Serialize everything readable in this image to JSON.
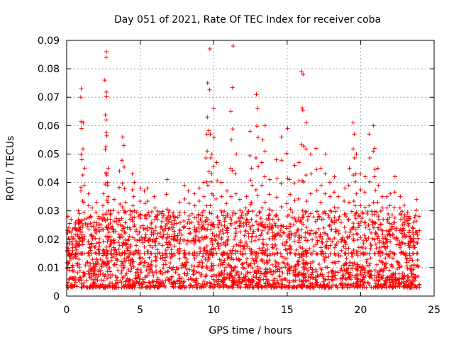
{
  "chart_data": {
    "type": "scatter",
    "title": "Day 051 of 2021, Rate Of TEC Index for receiver coba",
    "xlabel": "GPS time / hours",
    "ylabel": "ROTI / TECUs",
    "xlim": [
      0,
      25
    ],
    "ylim": [
      0,
      0.09
    ],
    "xticks": [
      0,
      5,
      10,
      15,
      20,
      25
    ],
    "xtick_labels": [
      "0",
      "5",
      "10",
      "15",
      "20",
      "25"
    ],
    "yticks": [
      0,
      0.01,
      0.02,
      0.03,
      0.04,
      0.05,
      0.06,
      0.07,
      0.08,
      0.09
    ],
    "ytick_labels": [
      "0",
      "0.01",
      "0.02",
      "0.03",
      "0.04",
      "0.05",
      "0.06",
      "0.07",
      "0.08",
      "0.09"
    ],
    "grid": true,
    "marker": "+",
    "color": "#ff0000",
    "series": [
      {
        "name": "ROTI",
        "x": [
          0.1,
          0.2,
          0.4,
          0.6,
          0.8,
          0.9,
          1.0,
          1.0,
          1.1,
          1.2,
          1.5,
          1.7,
          2.0,
          2.2,
          2.5,
          2.6,
          2.7,
          2.7,
          2.7,
          2.8,
          2.8,
          3.0,
          3.2,
          3.6,
          3.8,
          3.9,
          4.0,
          4.3,
          4.5,
          4.6,
          5.0,
          5.3,
          5.5,
          5.8,
          6.0,
          6.5,
          6.8,
          7.0,
          7.3,
          7.7,
          8.0,
          8.3,
          8.7,
          9.0,
          9.3,
          9.5,
          9.6,
          9.7,
          9.8,
          9.9,
          10.0,
          10.2,
          10.5,
          10.9,
          11.2,
          11.3,
          11.5,
          11.8,
          12.2,
          12.5,
          12.6,
          12.9,
          13.0,
          13.3,
          13.5,
          13.8,
          14.0,
          14.3,
          14.6,
          15.0,
          15.2,
          15.5,
          15.8,
          16.0,
          16.1,
          16.3,
          16.6,
          17.0,
          17.3,
          17.6,
          17.9,
          18.2,
          18.5,
          18.9,
          19.2,
          19.5,
          19.6,
          19.7,
          20.0,
          20.3,
          20.6,
          20.9,
          21.0,
          21.2,
          21.5,
          21.8,
          22.0,
          22.3,
          22.7,
          23.0,
          23.3,
          23.6,
          23.8
        ],
        "y": [
          0.024,
          0.014,
          0.02,
          0.026,
          0.03,
          0.029,
          0.073,
          0.07,
          0.061,
          0.045,
          0.036,
          0.031,
          0.033,
          0.028,
          0.036,
          0.076,
          0.086,
          0.084,
          0.062,
          0.045,
          0.04,
          0.03,
          0.034,
          0.044,
          0.056,
          0.053,
          0.033,
          0.03,
          0.043,
          0.04,
          0.038,
          0.037,
          0.038,
          0.026,
          0.035,
          0.029,
          0.041,
          0.03,
          0.028,
          0.033,
          0.039,
          0.037,
          0.036,
          0.038,
          0.04,
          0.057,
          0.075,
          0.087,
          0.057,
          0.05,
          0.066,
          0.047,
          0.04,
          0.037,
          0.065,
          0.088,
          0.05,
          0.034,
          0.035,
          0.058,
          0.045,
          0.071,
          0.066,
          0.055,
          0.06,
          0.041,
          0.03,
          0.048,
          0.056,
          0.059,
          0.041,
          0.046,
          0.047,
          0.079,
          0.078,
          0.061,
          0.05,
          0.052,
          0.045,
          0.05,
          0.04,
          0.042,
          0.035,
          0.038,
          0.045,
          0.061,
          0.057,
          0.05,
          0.043,
          0.042,
          0.057,
          0.06,
          0.052,
          0.045,
          0.035,
          0.035,
          0.036,
          0.042,
          0.035,
          0.032,
          0.025,
          0.026,
          0.034
        ]
      }
    ],
    "dense_band": {
      "x_range": [
        0,
        24
      ],
      "y_range": [
        0.003,
        0.03
      ],
      "count": 2400
    }
  }
}
